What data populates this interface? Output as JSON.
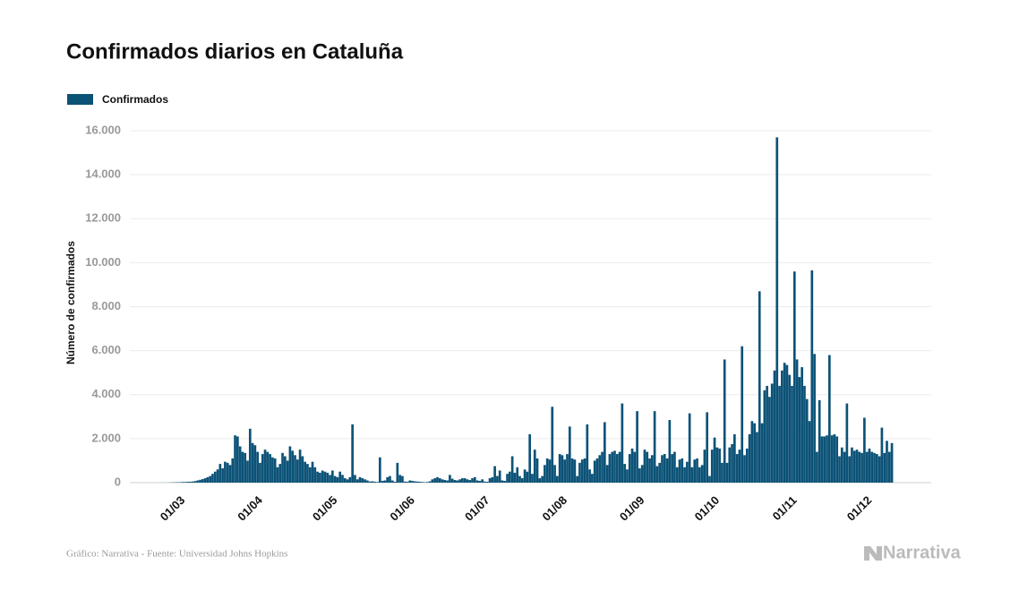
{
  "chart_data": {
    "type": "bar",
    "title": "Confirmados diarios en Cataluña",
    "y_label": "Número de confirmados",
    "source": "Gráfico: Narrativa - Fuente: Universidad Johns Hopkins",
    "logo": "Narrativa",
    "grid": true,
    "legend": "top-left",
    "ylim": [
      0,
      16000
    ],
    "yticks": [
      0,
      {
        "value": 2000,
        "label": "2.000"
      },
      {
        "value": 4000,
        "label": "4.000"
      },
      {
        "value": 6000,
        "label": "6.000"
      },
      {
        "value": 8000,
        "label": "8.000"
      },
      {
        "value": 10000,
        "label": "10.000"
      },
      {
        "value": 12000,
        "label": "12.000"
      },
      {
        "value": 14000,
        "label": "14.000"
      },
      {
        "value": 16000,
        "label": "16.000"
      }
    ],
    "categories": [
      null,
      null,
      null,
      null,
      null,
      null,
      null,
      null,
      null,
      null,
      null,
      null,
      null,
      null,
      null,
      "01/03",
      null,
      null,
      null,
      null,
      null,
      null,
      null,
      null,
      null,
      null,
      null,
      null,
      null,
      null,
      null,
      null,
      null,
      null,
      null,
      null,
      null,
      null,
      null,
      null,
      null,
      null,
      null,
      null,
      null,
      null,
      "01/04",
      null,
      null,
      null,
      null,
      null,
      null,
      null,
      null,
      null,
      null,
      null,
      null,
      null,
      null,
      null,
      null,
      null,
      null,
      null,
      null,
      null,
      null,
      null,
      null,
      null,
      null,
      null,
      null,
      null,
      "01/05",
      null,
      null,
      null,
      null,
      null,
      null,
      null,
      null,
      null,
      null,
      null,
      null,
      null,
      null,
      null,
      null,
      null,
      null,
      null,
      null,
      null,
      null,
      null,
      null,
      null,
      null,
      null,
      null,
      null,
      null,
      "01/06",
      null,
      null,
      null,
      null,
      null,
      null,
      null,
      null,
      null,
      null,
      null,
      null,
      null,
      null,
      null,
      null,
      null,
      null,
      null,
      null,
      null,
      null,
      null,
      null,
      null,
      null,
      null,
      null,
      null,
      "01/07",
      null,
      null,
      null,
      null,
      null,
      null,
      null,
      null,
      null,
      null,
      null,
      null,
      null,
      null,
      null,
      null,
      null,
      null,
      null,
      null,
      null,
      null,
      null,
      null,
      null,
      null,
      null,
      null,
      null,
      null,
      "01/08",
      null,
      null,
      null,
      null,
      null,
      null,
      null,
      null,
      null,
      null,
      null,
      null,
      null,
      null,
      null,
      null,
      null,
      null,
      null,
      null,
      null,
      null,
      null,
      null,
      null,
      null,
      null,
      null,
      null,
      null,
      "01/09",
      null,
      null,
      null,
      null,
      null,
      null,
      null,
      null,
      null,
      null,
      null,
      null,
      null,
      null,
      null,
      null,
      null,
      null,
      null,
      null,
      null,
      null,
      null,
      null,
      null,
      null,
      null,
      null,
      null,
      "01/10",
      null,
      null,
      null,
      null,
      null,
      null,
      null,
      null,
      null,
      null,
      null,
      null,
      null,
      null,
      null,
      null,
      null,
      null,
      null,
      null,
      null,
      null,
      null,
      null,
      null,
      null,
      null,
      null,
      null,
      null,
      "01/11",
      null,
      null,
      null,
      null,
      null,
      null,
      null,
      null,
      null,
      null,
      null,
      null,
      null,
      null,
      null,
      null,
      null,
      null,
      null,
      null,
      null,
      null,
      null,
      null,
      null,
      null,
      null,
      null,
      null,
      "01/12",
      null,
      null,
      null,
      null,
      null,
      null,
      null,
      null,
      null,
      null,
      null,
      null,
      null
    ],
    "series": [
      {
        "name": "Confirmados",
        "color": "#0c5277",
        "values": [
          0,
          0,
          0,
          0,
          0,
          0,
          0,
          0,
          0,
          0,
          1,
          1,
          2,
          3,
          6,
          10,
          15,
          20,
          20,
          30,
          30,
          40,
          40,
          50,
          70,
          100,
          130,
          160,
          200,
          250,
          300,
          400,
          500,
          600,
          850,
          650,
          950,
          900,
          800,
          1100,
          2150,
          2100,
          1650,
          1400,
          1350,
          1000,
          2450,
          1800,
          1700,
          1400,
          900,
          1300,
          1500,
          1400,
          1300,
          1150,
          1100,
          700,
          850,
          1350,
          1200,
          1000,
          1650,
          1450,
          1250,
          1050,
          1500,
          1200,
          950,
          850,
          700,
          950,
          700,
          500,
          450,
          550,
          500,
          450,
          350,
          550,
          300,
          250,
          500,
          350,
          200,
          150,
          250,
          2650,
          350,
          150,
          250,
          200,
          150,
          100,
          50,
          60,
          40,
          30,
          1150,
          80,
          100,
          250,
          300,
          100,
          40,
          900,
          350,
          300,
          50,
          40,
          100,
          80,
          60,
          50,
          40,
          30,
          20,
          30,
          60,
          150,
          200,
          250,
          200,
          150,
          120,
          100,
          350,
          180,
          120,
          100,
          150,
          200,
          200,
          150,
          120,
          200,
          250,
          100,
          80,
          150,
          50,
          40,
          200,
          250,
          750,
          300,
          550,
          100,
          80,
          400,
          500,
          1200,
          450,
          700,
          300,
          200,
          600,
          500,
          2200,
          400,
          1500,
          1100,
          200,
          300,
          800,
          1100,
          1050,
          3450,
          800,
          300,
          1300,
          1250,
          1050,
          1300,
          2550,
          1100,
          1050,
          300,
          900,
          1050,
          1100,
          2650,
          600,
          400,
          1000,
          1100,
          1250,
          1400,
          2750,
          800,
          1300,
          1400,
          1450,
          1300,
          1400,
          3600,
          850,
          600,
          1300,
          1550,
          1400,
          3250,
          650,
          800,
          1500,
          1400,
          1100,
          1250,
          3250,
          750,
          900,
          1250,
          1300,
          1100,
          2850,
          1300,
          1400,
          700,
          1050,
          1100,
          700,
          950,
          3150,
          700,
          1050,
          1100,
          700,
          800,
          1500,
          3200,
          300,
          1500,
          2050,
          1600,
          1550,
          900,
          5600,
          900,
          1600,
          1750,
          2200,
          1300,
          1500,
          6200,
          1250,
          1550,
          2200,
          2800,
          2700,
          2300,
          8700,
          2700,
          4200,
          4400,
          3900,
          4500,
          5100,
          15700,
          4400,
          5100,
          5450,
          5350,
          4900,
          4400,
          9600,
          5600,
          4800,
          5250,
          4400,
          3800,
          2800,
          9650,
          5850,
          1400,
          3750,
          2100,
          2100,
          2150,
          5800,
          2150,
          2200,
          2100,
          1200,
          1600,
          1400,
          3600,
          1200,
          1600,
          1450,
          1500,
          1400,
          1350,
          2950,
          1400,
          1550,
          1400,
          1350,
          1300,
          1200,
          2500,
          1350,
          1900,
          1400,
          1800
        ]
      }
    ]
  }
}
